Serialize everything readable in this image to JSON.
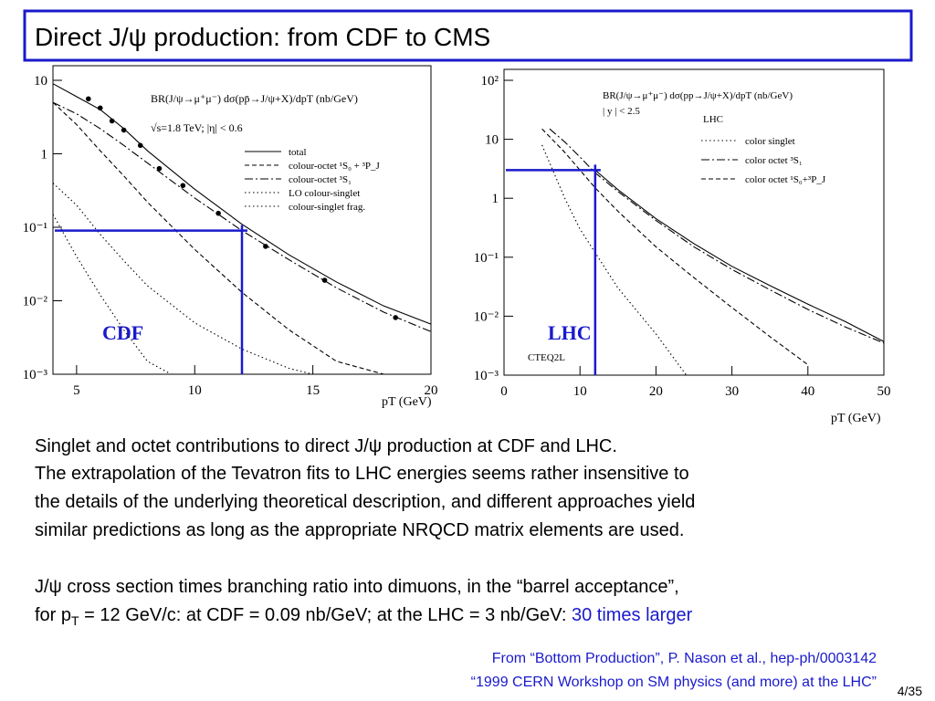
{
  "title": "Direct J/ψ production: from CDF to CMS",
  "chart_data": [
    {
      "type": "line",
      "x_label": "pT (GeV)",
      "log_y": true,
      "annotations": {
        "formula": "BR(J/ψ→μ⁺μ⁻) dσ(pp̄→J/ψ+X)/dpT (nb/GeV)",
        "condition": "√s=1.8 TeV; |η| < 0.6",
        "label": "CDF"
      },
      "xlim": [
        4,
        20
      ],
      "ylim": [
        0.001,
        10
      ],
      "xticks": [
        5,
        10,
        15,
        20
      ],
      "yticks": [
        {
          "value": 10,
          "label": "10"
        },
        1,
        {
          "value": 0.1,
          "label": "10⁻¹"
        },
        {
          "value": 0.01,
          "label": "10⁻²"
        },
        {
          "value": 0.001,
          "label": "10⁻³"
        }
      ],
      "series": [
        {
          "name": "total",
          "color": "#000000",
          "style": "solid",
          "x": [
            4,
            5,
            6,
            7,
            8,
            10,
            12,
            14,
            16,
            18,
            20
          ],
          "values": [
            9,
            6,
            4,
            2.2,
            1.1,
            0.33,
            0.11,
            0.042,
            0.018,
            0.0085,
            0.0048
          ]
        },
        {
          "name": "colour-octet ¹S₀ + ³P_J",
          "color": "#000000",
          "style": "dashed",
          "x": [
            4,
            5,
            6,
            7,
            8,
            10,
            12,
            14,
            16,
            18
          ],
          "values": [
            5,
            2.5,
            1.1,
            0.5,
            0.22,
            0.05,
            0.013,
            0.004,
            0.0015,
            0.001
          ]
        },
        {
          "name": "colour-octet ³S₁",
          "color": "#000000",
          "style": "dashdot",
          "x": [
            4,
            5,
            6,
            7,
            8,
            10,
            12,
            14,
            16,
            18,
            20
          ],
          "values": [
            5,
            3.5,
            2.2,
            1.3,
            0.75,
            0.25,
            0.09,
            0.036,
            0.015,
            0.007,
            0.0038
          ]
        },
        {
          "name": "LO colour-singlet",
          "color": "#000000",
          "style": "dotted",
          "x": [
            4,
            5,
            6,
            7,
            8,
            9
          ],
          "values": [
            0.15,
            0.04,
            0.012,
            0.004,
            0.0015,
            0.001
          ]
        },
        {
          "name": "colour-singlet frag.",
          "color": "#000000",
          "style": "dotted",
          "x": [
            4,
            5,
            6,
            7,
            8,
            10,
            12,
            14,
            15
          ],
          "values": [
            0.4,
            0.2,
            0.08,
            0.035,
            0.016,
            0.005,
            0.0022,
            0.0012,
            0.001
          ]
        }
      ],
      "points": {
        "x": [
          5.5,
          6,
          6.5,
          7,
          7.7,
          8.5,
          9.5,
          11,
          13,
          15.5,
          18.5
        ],
        "values": [
          5.6,
          4.2,
          2.8,
          2.1,
          1.3,
          0.63,
          0.37,
          0.155,
          0.055,
          0.019,
          0.0059
        ]
      },
      "guide": {
        "x": 12,
        "y": 0.09
      }
    },
    {
      "type": "line",
      "x_label": "pT (GeV)",
      "log_y": true,
      "annotations": {
        "formula": "BR(J/ψ→μ⁺μ⁻) dσ(pp→J/ψ+X)/dpT (nb/GeV)",
        "condition": "| y | < 2.5",
        "legend_title": "LHC",
        "pdf": "CTEQ2L",
        "label": "LHC"
      },
      "xlim": [
        0,
        50
      ],
      "ylim": [
        0.001,
        100
      ],
      "xticks": [
        0,
        10,
        20,
        30,
        40,
        50
      ],
      "yticks": [
        {
          "value": 100,
          "label": "10²"
        },
        {
          "value": 10,
          "label": "10"
        },
        1,
        {
          "value": 0.1,
          "label": "10⁻¹"
        },
        {
          "value": 0.01,
          "label": "10⁻²"
        },
        {
          "value": 0.001,
          "label": "10⁻³"
        }
      ],
      "series": [
        {
          "color": "#000000",
          "style": "solid",
          "x": [
            12,
            15,
            20,
            25,
            30,
            35,
            40,
            45,
            50
          ],
          "values": [
            3,
            1.4,
            0.45,
            0.17,
            0.07,
            0.033,
            0.016,
            0.008,
            0.0037
          ]
        },
        {
          "name": "color singlet",
          "color": "#000000",
          "style": "dotted",
          "x": [
            5,
            8,
            10,
            15,
            20,
            24
          ],
          "values": [
            8,
            1,
            0.3,
            0.03,
            0.005,
            0.001
          ]
        },
        {
          "name": "color octet ³S₁",
          "color": "#000000",
          "style": "dashdot",
          "x": [
            6,
            8,
            10,
            12,
            15,
            20,
            25,
            30,
            35,
            40,
            45,
            50
          ],
          "values": [
            15,
            9,
            5,
            2.7,
            1.3,
            0.42,
            0.15,
            0.062,
            0.028,
            0.013,
            0.0065,
            0.0035
          ]
        },
        {
          "name": "color octet ¹S₀+³P_J",
          "color": "#000000",
          "style": "dashed",
          "x": [
            5,
            8,
            10,
            12,
            15,
            20,
            25,
            30,
            35,
            40
          ],
          "values": [
            15,
            6,
            3,
            1.5,
            0.6,
            0.15,
            0.045,
            0.014,
            0.0045,
            0.0015
          ]
        }
      ],
      "guide": {
        "x": 12,
        "y": 3
      }
    }
  ],
  "body": {
    "paragraph1": [
      "Singlet and octet contributions to direct J/ψ production at CDF and LHC.",
      "The extrapolation of the Tevatron fits to LHC energies seems rather insensitive to",
      "the details of the underlying theoretical description, and different approaches yield",
      "similar predictions as long as the appropriate NRQCD matrix elements are used."
    ],
    "paragraph2_line1": "J/ψ cross section times branching ratio into dimuons, in the “barrel acceptance”,",
    "paragraph2_line2": {
      "start": "for p",
      "sub": "T",
      "middle": " = 12 GeV/c: at CDF = 0.09 nb/GeV; at the LHC = 3 nb/GeV: ",
      "highlight": "30 times larger"
    }
  },
  "references": [
    "From “Bottom Production”, P. Nason et al., hep-ph/0003142",
    "“1999 CERN Workshop on SM physics (and more) at the LHC”"
  ],
  "page": "4/35"
}
